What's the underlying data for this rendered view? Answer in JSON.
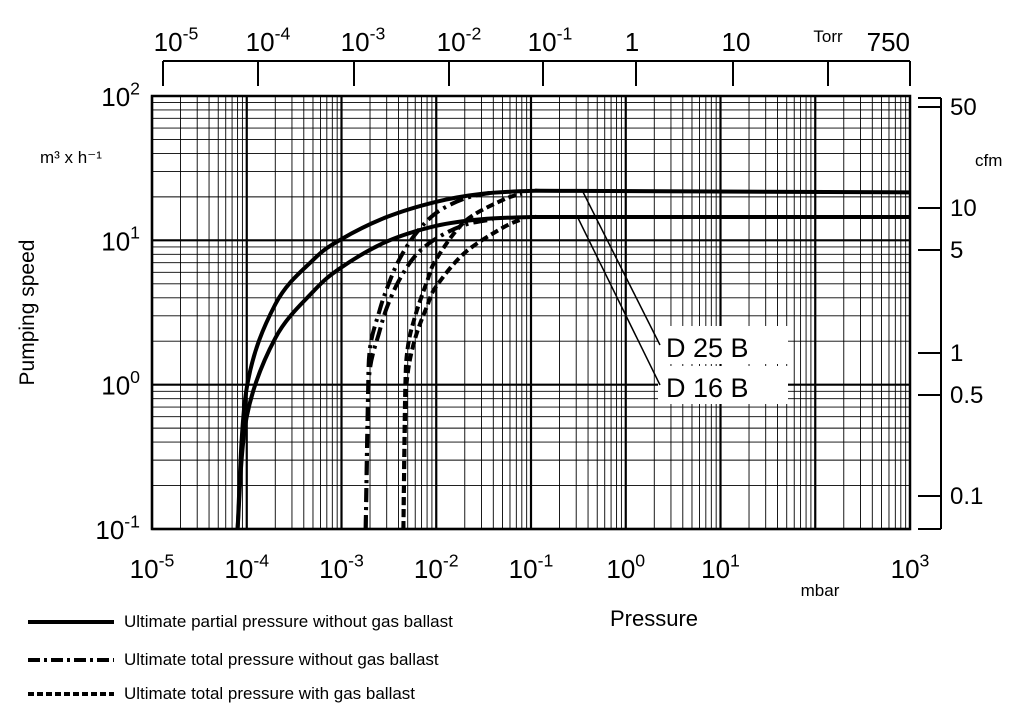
{
  "chart_data": {
    "type": "line",
    "log_x": true,
    "log_y": true,
    "xlim": [
      1e-05,
      1000
    ],
    "ylim": [
      0.1,
      100
    ],
    "grid": true,
    "xlabel": "Pressure",
    "ylabel": "Pumping speed",
    "y_unit": "m³ x h⁻¹",
    "x_unit": "mbar",
    "top_axis_unit": "Torr",
    "right_axis_unit": "cfm",
    "x_ticks": [
      {
        "base": "10",
        "exp": "-5"
      },
      {
        "base": "10",
        "exp": "-4"
      },
      {
        "base": "10",
        "exp": "-3"
      },
      {
        "base": "10",
        "exp": "-2"
      },
      {
        "base": "10",
        "exp": "-1"
      },
      {
        "base": "10",
        "exp": "0"
      },
      {
        "base": "10",
        "exp": "1"
      },
      {
        "base": "10",
        "exp": "3"
      }
    ],
    "y_ticks": [
      {
        "base": "10",
        "exp": "2"
      },
      {
        "base": "10",
        "exp": "1"
      },
      {
        "base": "10",
        "exp": "0"
      },
      {
        "base": "10",
        "exp": "-1"
      }
    ],
    "top_ticks": [
      {
        "label": "10",
        "exp": "-5"
      },
      {
        "label": "10",
        "exp": "-4"
      },
      {
        "label": "10",
        "exp": "-3"
      },
      {
        "label": "10",
        "exp": "-2"
      },
      {
        "label": "10",
        "exp": "-1"
      },
      {
        "label": "1",
        "exp": ""
      },
      {
        "label": "10",
        "exp": ""
      },
      {
        "label": "750",
        "exp": ""
      }
    ],
    "right_ticks": [
      "50",
      "10",
      "5",
      "1",
      "0.5",
      "0.1"
    ],
    "series_labels": [
      "D 25 B",
      "D 16 B"
    ],
    "series": [
      {
        "name": "D 25 B",
        "style": "solid",
        "x": [
          8e-05,
          0.0001,
          0.0002,
          0.0005,
          0.001,
          0.003,
          0.01,
          0.03,
          0.1,
          0.3,
          1000
        ],
        "y": [
          0.1,
          0.95,
          3.6,
          7.3,
          10.2,
          14.5,
          18.5,
          21.0,
          22.0,
          22.0,
          21.5
        ]
      },
      {
        "name": "D 16 B",
        "style": "solid",
        "x": [
          8e-05,
          0.0001,
          0.0002,
          0.0005,
          0.001,
          0.003,
          0.01,
          0.03,
          0.1,
          0.3,
          1000
        ],
        "y": [
          0.1,
          0.6,
          2.1,
          4.4,
          6.5,
          9.8,
          12.6,
          14.0,
          14.5,
          14.5,
          14.5
        ]
      },
      {
        "name": "D 25 B",
        "style": "dashdot",
        "x": [
          0.0018,
          0.0019,
          0.002,
          0.0025,
          0.003,
          0.004,
          0.006,
          0.01,
          0.02,
          0.04
        ],
        "y": [
          0.1,
          0.8,
          1.8,
          3.2,
          4.6,
          7.2,
          11.0,
          15.5,
          19.5,
          21.5
        ]
      },
      {
        "name": "D 16 B",
        "style": "dashdot",
        "x": [
          0.0018,
          0.0019,
          0.002,
          0.0025,
          0.003,
          0.004,
          0.006,
          0.01,
          0.02,
          0.04
        ],
        "y": [
          0.1,
          0.6,
          1.3,
          2.3,
          3.4,
          5.2,
          7.8,
          10.3,
          12.8,
          14.0
        ]
      },
      {
        "name": "D 25 B",
        "style": "dash",
        "x": [
          0.0045,
          0.0047,
          0.005,
          0.006,
          0.008,
          0.01,
          0.02,
          0.05,
          0.08
        ],
        "y": [
          0.1,
          0.9,
          1.8,
          3.0,
          5.2,
          7.4,
          13.5,
          19.0,
          21.0
        ]
      },
      {
        "name": "D 16 B",
        "style": "dash",
        "x": [
          0.0045,
          0.0047,
          0.005,
          0.006,
          0.008,
          0.01,
          0.02,
          0.05,
          0.08
        ],
        "y": [
          0.1,
          0.6,
          1.2,
          2.1,
          3.5,
          4.8,
          8.2,
          12.2,
          14.0
        ]
      }
    ]
  },
  "legend": [
    {
      "style": "solid",
      "label": "Ultimate partial pressure without gas ballast"
    },
    {
      "style": "dashdot",
      "label": "Ultimate total pressure without gas ballast"
    },
    {
      "style": "dash",
      "label": "Ultimate total pressure with gas ballast"
    }
  ]
}
